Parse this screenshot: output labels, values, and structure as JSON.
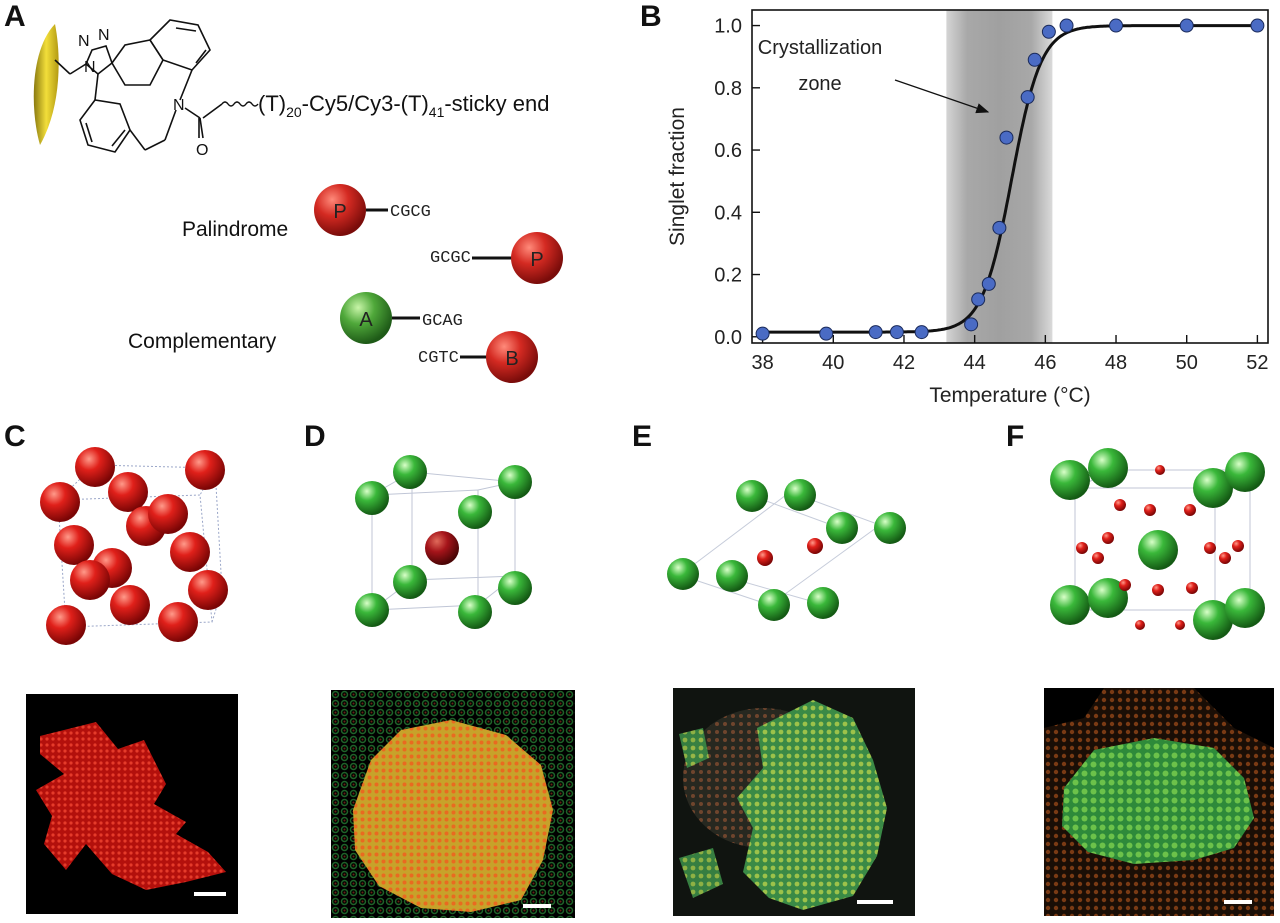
{
  "panels": {
    "a": "A",
    "b": "B",
    "c": "C",
    "d": "D",
    "e": "E",
    "f": "F"
  },
  "panel_a": {
    "chem": {
      "n1": "N",
      "n2": "N",
      "n3": "N",
      "n_amide": "N",
      "o": "O"
    },
    "chain": {
      "t1": "(T)",
      "t1_sub": "20",
      "mid": "-Cy5/Cy3-(T)",
      "t2_sub": "41",
      "end": "-sticky end"
    },
    "palindrome_label": "Palindrome",
    "complementary_label": "Complementary",
    "particles": {
      "p1": "P",
      "p2": "P",
      "a": "A",
      "b": "B"
    },
    "seq": {
      "p1": "CGCG",
      "p2": "GCGC",
      "a": "GCAG",
      "b": "CGTC"
    },
    "colors": {
      "red": "#c8201e",
      "green": "#3f9a34",
      "gold": "#e0c21a"
    }
  },
  "panel_b": {
    "annotation_line1": "Crystallization",
    "annotation_line2": "zone"
  },
  "chart_data": {
    "type": "scatter",
    "xlabel": "Temperature (°C)",
    "ylabel": "Singlet fraction",
    "xlim": [
      37.7,
      52.3
    ],
    "ylim": [
      -0.02,
      1.05
    ],
    "xticks": [
      38,
      40,
      42,
      44,
      46,
      48,
      50,
      52
    ],
    "yticks": [
      0.0,
      0.2,
      0.4,
      0.6,
      0.8,
      1.0
    ],
    "ytick_labels": [
      "0.0",
      "0.2",
      "0.4",
      "0.6",
      "0.8",
      "1.0"
    ],
    "shaded_region": [
      43.2,
      46.2
    ],
    "fit_curve": {
      "midpoint": 45.05,
      "slope": 2.4,
      "baseline": 0.015
    },
    "points": [
      {
        "x": 38.0,
        "y": 0.01
      },
      {
        "x": 39.8,
        "y": 0.01
      },
      {
        "x": 41.2,
        "y": 0.015
      },
      {
        "x": 41.8,
        "y": 0.015
      },
      {
        "x": 42.5,
        "y": 0.015
      },
      {
        "x": 43.9,
        "y": 0.04
      },
      {
        "x": 44.1,
        "y": 0.12
      },
      {
        "x": 44.4,
        "y": 0.17
      },
      {
        "x": 44.7,
        "y": 0.35
      },
      {
        "x": 44.9,
        "y": 0.64
      },
      {
        "x": 45.5,
        "y": 0.77
      },
      {
        "x": 45.7,
        "y": 0.89
      },
      {
        "x": 46.1,
        "y": 0.98
      },
      {
        "x": 46.6,
        "y": 1.0
      },
      {
        "x": 48.0,
        "y": 1.0
      },
      {
        "x": 50.0,
        "y": 1.0
      },
      {
        "x": 52.0,
        "y": 1.0
      }
    ],
    "marker_color": "#4a6bc4",
    "curve_color": "#111111",
    "grid": false,
    "legend": false
  }
}
